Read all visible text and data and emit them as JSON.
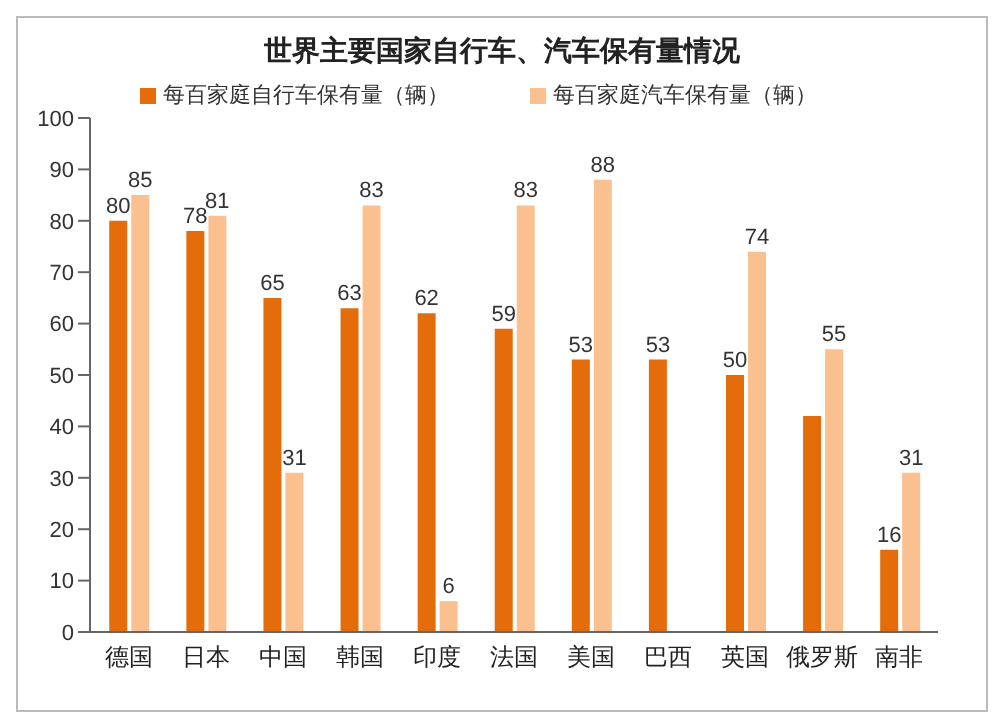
{
  "chart_data": {
    "type": "bar",
    "title": "世界主要国家自行车、汽车保有量情况",
    "categories": [
      "德国",
      "日本",
      "中国",
      "韩国",
      "印度",
      "法国",
      "美国",
      "巴西",
      "英国",
      "俄罗斯",
      "南非"
    ],
    "series": [
      {
        "name": "每百家庭自行车保有量（辆）",
        "color": "#e46c0a",
        "values": [
          80,
          78,
          65,
          63,
          62,
          59,
          53,
          53,
          50,
          42,
          16
        ],
        "value_labels": [
          "80",
          "78",
          "65",
          "63",
          "62",
          "59",
          "53",
          "53",
          "50",
          null,
          "16"
        ]
      },
      {
        "name": "每百家庭汽车保有量（辆）",
        "color": "#fac090",
        "values": [
          85,
          81,
          31,
          83,
          6,
          83,
          88,
          null,
          74,
          55,
          31
        ],
        "value_labels": [
          "85",
          "81",
          "31",
          "83",
          "6",
          "83",
          "88",
          null,
          "74",
          "55",
          "31"
        ]
      }
    ],
    "ylim": [
      0,
      100
    ],
    "yticks": [
      0,
      10,
      20,
      30,
      40,
      50,
      60,
      70,
      80,
      90,
      100
    ],
    "legend": "top",
    "grid": false
  }
}
